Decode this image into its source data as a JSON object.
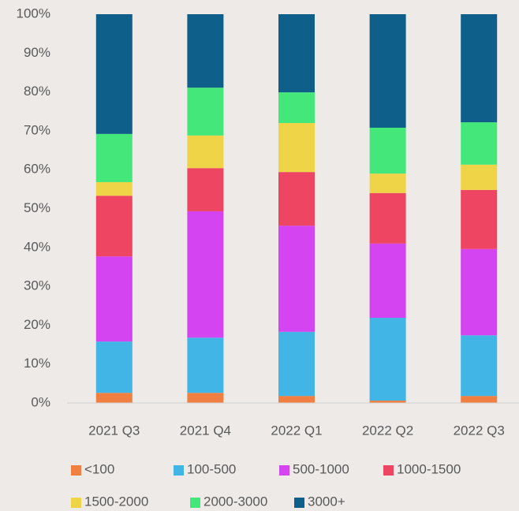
{
  "chart_data": {
    "type": "stacked_bar",
    "categories": [
      "2021 Q3",
      "2021 Q4",
      "2022 Q1",
      "2022 Q2",
      "2022 Q3"
    ],
    "series": [
      {
        "name": "<100",
        "color": "#f07f42",
        "values": [
          2.6,
          2.6,
          1.8,
          0.6,
          1.8
        ]
      },
      {
        "name": "100-500",
        "color": "#41b6e6",
        "values": [
          13.2,
          14.2,
          16.5,
          21.3,
          15.6
        ]
      },
      {
        "name": "500-1000",
        "color": "#d444f0",
        "values": [
          21.9,
          32.5,
          27.3,
          19.1,
          22.2
        ]
      },
      {
        "name": "1000-1500",
        "color": "#ee4562",
        "values": [
          15.6,
          11.1,
          13.8,
          13.0,
          15.2
        ]
      },
      {
        "name": "1500-2000",
        "color": "#f0d447",
        "values": [
          3.5,
          8.4,
          12.6,
          5.0,
          6.5
        ]
      },
      {
        "name": "2000-3000",
        "color": "#44e87a",
        "values": [
          12.4,
          12.3,
          7.9,
          11.8,
          10.9
        ]
      },
      {
        "name": "3000+",
        "color": "#0e5f8a",
        "values": [
          30.8,
          18.9,
          20.1,
          29.2,
          27.8
        ]
      }
    ],
    "ylim": [
      0,
      100
    ],
    "yticks": [
      {
        "value": 0,
        "label": "0%"
      },
      {
        "value": 10,
        "label": "10%"
      },
      {
        "value": 20,
        "label": "20%"
      },
      {
        "value": 30,
        "label": "30%"
      },
      {
        "value": 40,
        "label": "40%"
      },
      {
        "value": 50,
        "label": "50%"
      },
      {
        "value": 60,
        "label": "60%"
      },
      {
        "value": 70,
        "label": "70%"
      },
      {
        "value": 80,
        "label": "80%"
      },
      {
        "value": 90,
        "label": "90%"
      },
      {
        "value": 100,
        "label": "100%"
      }
    ],
    "legend": "bottom"
  }
}
